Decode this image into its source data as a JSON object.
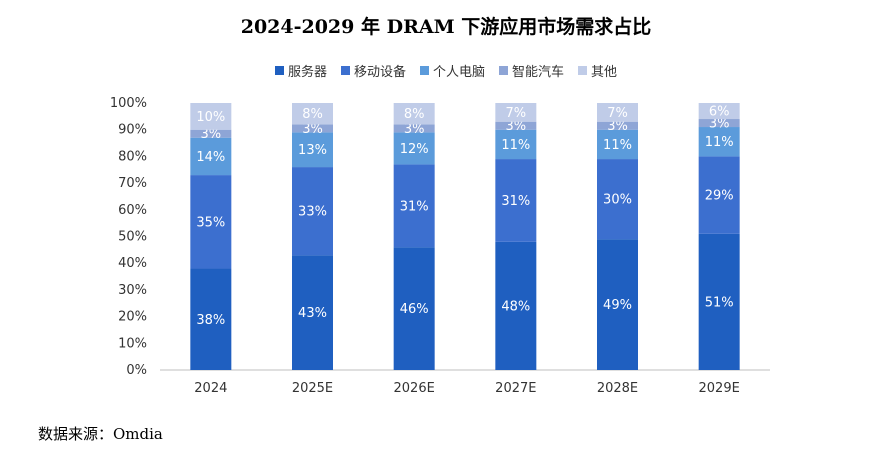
{
  "chart_data": {
    "type": "bar",
    "stacked": true,
    "title": "2024-2029 年 DRAM 下游应用市场需求占比",
    "categories": [
      "2024",
      "2025E",
      "2026E",
      "2027E",
      "2028E",
      "2029E"
    ],
    "series": [
      {
        "name": "服务器",
        "color": "#1F5FC0",
        "values": [
          38,
          43,
          46,
          48,
          49,
          51
        ]
      },
      {
        "name": "移动设备",
        "color": "#3C6FCF",
        "values": [
          35,
          33,
          31,
          31,
          30,
          29
        ]
      },
      {
        "name": "个人电脑",
        "color": "#5B9BDB",
        "values": [
          14,
          13,
          12,
          11,
          11,
          11
        ]
      },
      {
        "name": "智能汽车",
        "color": "#8EA5D6",
        "values": [
          3,
          3,
          3,
          3,
          3,
          3
        ]
      },
      {
        "name": "其他",
        "color": "#C0CCE8",
        "values": [
          10,
          8,
          8,
          7,
          7,
          6
        ]
      }
    ],
    "yticks": [
      "0%",
      "10%",
      "20%",
      "30%",
      "40%",
      "50%",
      "60%",
      "70%",
      "80%",
      "90%",
      "100%"
    ],
    "ylim": [
      0,
      100
    ],
    "legend_position": "top-center",
    "value_suffix": "%"
  },
  "source_text": "数据来源：Omdia"
}
